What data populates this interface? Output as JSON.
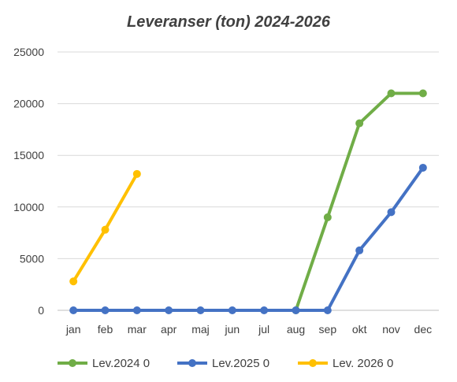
{
  "chart_data": {
    "type": "line",
    "title": "Leveranser (ton) 2024-2026",
    "xlabel": "",
    "ylabel": "",
    "categories": [
      "jan",
      "feb",
      "mar",
      "apr",
      "maj",
      "jun",
      "jul",
      "aug",
      "sep",
      "okt",
      "nov",
      "dec"
    ],
    "ylim": [
      0,
      25000
    ],
    "yticks": [
      0,
      5000,
      10000,
      15000,
      20000,
      25000
    ],
    "grid": true,
    "legend_position": "bottom",
    "series": [
      {
        "name": "Lev.2024 0",
        "color": "#70ad47",
        "values": [
          null,
          null,
          null,
          null,
          null,
          null,
          null,
          0,
          9000,
          18100,
          21000,
          21000
        ]
      },
      {
        "name": "Lev.2025 0",
        "color": "#4472c4",
        "values": [
          0,
          0,
          0,
          0,
          0,
          0,
          0,
          0,
          0,
          5800,
          9500,
          13800
        ]
      },
      {
        "name": "Lev. 2026 0",
        "color": "#ffc000",
        "values": [
          2800,
          7800,
          13200,
          null,
          null,
          null,
          null,
          null,
          null,
          null,
          null,
          null
        ]
      }
    ]
  }
}
